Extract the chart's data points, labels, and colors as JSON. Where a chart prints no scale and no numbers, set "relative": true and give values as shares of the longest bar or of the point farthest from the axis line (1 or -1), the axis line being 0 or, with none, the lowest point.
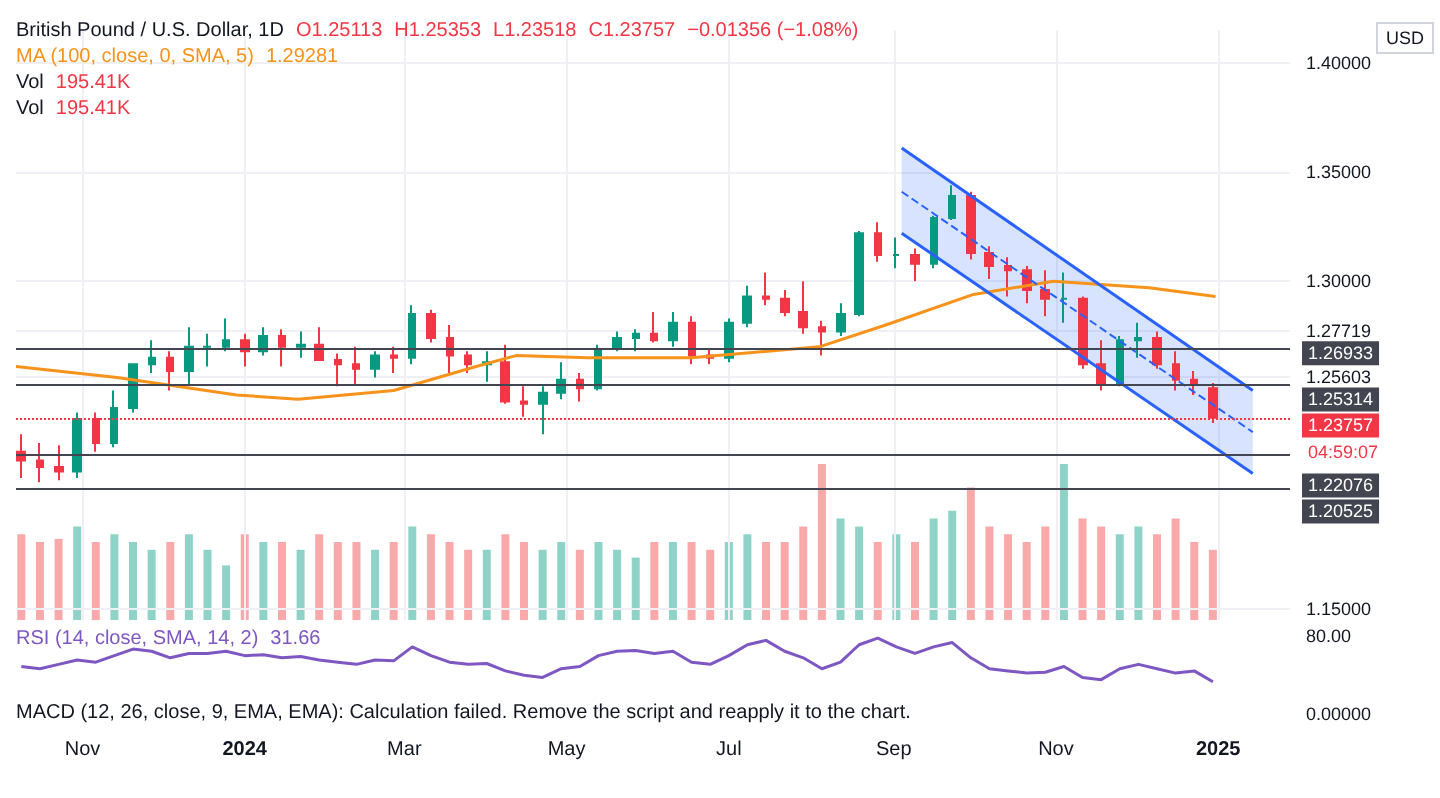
{
  "chart_data": [
    {
      "type": "candlestick",
      "title": "British Pound / U.S. Dollar, 1D",
      "ylabel": "USD",
      "grid": true,
      "annotations": [
        "O1.25113",
        "H1.25353",
        "L1.23518",
        "C1.23757",
        "−0.01356 (−1.08%)",
        "1.29281",
        "04:59:07"
      ],
      "xlim": [
        "2023-10-07",
        "2025-01-28"
      ],
      "xticks": [
        {
          "value": "2023-11-01",
          "label": "Nov"
        },
        {
          "value": "2024-01-01",
          "label": "2024"
        },
        {
          "value": "2024-03-01",
          "label": "Mar"
        },
        {
          "value": "2024-05-01",
          "label": "May"
        },
        {
          "value": "2024-07-01",
          "label": "Jul"
        },
        {
          "value": "2024-09-01",
          "label": "Sep"
        },
        {
          "value": "2024-11-01",
          "label": "Nov"
        },
        {
          "value": "2025-01-01",
          "label": "2025"
        }
      ],
      "ylim": [
        1.145,
        1.415
      ],
      "yticks": [
        {
          "value": 1.15,
          "label": "1.15000"
        },
        {
          "value": 1.25603,
          "label": "1.25603"
        },
        {
          "value": 1.27719,
          "label": "1.27719"
        },
        {
          "value": 1.3,
          "label": "1.30000"
        },
        {
          "value": 1.35,
          "label": "1.35000"
        },
        {
          "value": 1.4,
          "label": "1.40000"
        }
      ],
      "ref_lines": [
        {
          "axis": "y",
          "value": 1.26933,
          "label": "1.26933",
          "color": "#434651",
          "line_style": "solid"
        },
        {
          "axis": "y",
          "value": 1.25314,
          "label": "1.25314",
          "color": "#434651",
          "line_style": "solid"
        },
        {
          "axis": "y",
          "value": 1.23757,
          "label": "1.23757",
          "color": "#f23645",
          "line_style": "dotted"
        },
        {
          "axis": "y",
          "value": 1.22076,
          "label": "1.22076",
          "color": "#434651",
          "line_style": "solid"
        },
        {
          "axis": "y",
          "value": 1.20525,
          "label": "1.20525",
          "color": "#434651",
          "line_style": "solid"
        }
      ],
      "series": [
        {
          "type": "candlestick",
          "x": [
            "2023-10-09",
            "2023-10-16",
            "2023-10-23",
            "2023-10-30",
            "2023-11-06",
            "2023-11-13",
            "2023-11-20",
            "2023-11-27",
            "2023-12-04",
            "2023-12-11",
            "2023-12-18",
            "2023-12-25",
            "2024-01-01",
            "2024-01-08",
            "2024-01-15",
            "2024-01-22",
            "2024-01-29",
            "2024-02-05",
            "2024-02-12",
            "2024-02-19",
            "2024-02-26",
            "2024-03-04",
            "2024-03-11",
            "2024-03-18",
            "2024-03-25",
            "2024-04-01",
            "2024-04-08",
            "2024-04-15",
            "2024-04-22",
            "2024-04-29",
            "2024-05-06",
            "2024-05-13",
            "2024-05-20",
            "2024-05-27",
            "2024-06-03",
            "2024-06-10",
            "2024-06-17",
            "2024-06-24",
            "2024-07-01",
            "2024-07-08",
            "2024-07-15",
            "2024-07-22",
            "2024-07-29",
            "2024-08-05",
            "2024-08-12",
            "2024-08-19",
            "2024-08-26",
            "2024-09-02",
            "2024-09-09",
            "2024-09-16",
            "2024-09-23",
            "2024-09-30",
            "2024-10-07",
            "2024-10-14",
            "2024-10-21",
            "2024-10-28",
            "2024-11-04",
            "2024-11-11",
            "2024-11-18",
            "2024-11-25",
            "2024-12-02",
            "2024-12-09",
            "2024-12-16",
            "2024-12-23",
            "2024-12-30"
          ],
          "ohlc": [
            [
              1.222,
              1.23,
              1.21,
              1.218
            ],
            [
              1.218,
              1.226,
              1.208,
              1.215
            ],
            [
              1.215,
              1.225,
              1.209,
              1.213
            ],
            [
              1.213,
              1.24,
              1.21,
              1.237
            ],
            [
              1.237,
              1.24,
              1.222,
              1.226
            ],
            [
              1.226,
              1.25,
              1.224,
              1.242
            ],
            [
              1.242,
              1.262,
              1.24,
              1.262
            ],
            [
              1.262,
              1.273,
              1.258,
              1.265
            ],
            [
              1.265,
              1.268,
              1.25,
              1.259
            ],
            [
              1.259,
              1.279,
              1.252,
              1.27
            ],
            [
              1.27,
              1.276,
              1.261,
              1.27
            ],
            [
              1.27,
              1.283,
              1.268,
              1.273
            ],
            [
              1.273,
              1.276,
              1.261,
              1.268
            ],
            [
              1.268,
              1.279,
              1.266,
              1.275
            ],
            [
              1.275,
              1.278,
              1.261,
              1.27
            ],
            [
              1.27,
              1.277,
              1.265,
              1.271
            ],
            [
              1.271,
              1.279,
              1.264,
              1.264
            ],
            [
              1.264,
              1.267,
              1.252,
              1.262
            ],
            [
              1.262,
              1.27,
              1.253,
              1.26
            ],
            [
              1.26,
              1.268,
              1.256,
              1.266
            ],
            [
              1.266,
              1.27,
              1.258,
              1.265
            ],
            [
              1.265,
              1.289,
              1.262,
              1.285
            ],
            [
              1.285,
              1.287,
              1.272,
              1.274
            ],
            [
              1.274,
              1.28,
              1.258,
              1.266
            ],
            [
              1.266,
              1.268,
              1.258,
              1.262
            ],
            [
              1.262,
              1.268,
              1.254,
              1.263
            ],
            [
              1.263,
              1.271,
              1.244,
              1.245
            ],
            [
              1.245,
              1.252,
              1.238,
              1.244
            ],
            [
              1.244,
              1.252,
              1.23,
              1.249
            ],
            [
              1.249,
              1.263,
              1.246,
              1.255
            ],
            [
              1.255,
              1.258,
              1.245,
              1.251
            ],
            [
              1.251,
              1.271,
              1.25,
              1.269
            ],
            [
              1.269,
              1.277,
              1.268,
              1.274
            ],
            [
              1.274,
              1.278,
              1.268,
              1.276
            ],
            [
              1.276,
              1.286,
              1.272,
              1.273
            ],
            [
              1.273,
              1.286,
              1.27,
              1.281
            ],
            [
              1.281,
              1.284,
              1.262,
              1.266
            ],
            [
              1.266,
              1.269,
              1.262,
              1.265
            ],
            [
              1.265,
              1.283,
              1.263,
              1.281
            ],
            [
              1.281,
              1.298,
              1.279,
              1.293
            ],
            [
              1.293,
              1.304,
              1.289,
              1.292
            ],
            [
              1.292,
              1.296,
              1.284,
              1.286
            ],
            [
              1.286,
              1.3,
              1.276,
              1.279
            ],
            [
              1.279,
              1.282,
              1.266,
              1.277
            ],
            [
              1.277,
              1.29,
              1.275,
              1.285
            ],
            [
              1.285,
              1.323,
              1.284,
              1.322
            ],
            [
              1.322,
              1.327,
              1.309,
              1.312
            ],
            [
              1.312,
              1.32,
              1.306,
              1.312
            ],
            [
              1.312,
              1.315,
              1.3,
              1.308
            ],
            [
              1.308,
              1.33,
              1.306,
              1.329
            ],
            [
              1.329,
              1.344,
              1.328,
              1.339
            ],
            [
              1.339,
              1.341,
              1.31,
              1.313
            ],
            [
              1.313,
              1.316,
              1.301,
              1.307
            ],
            [
              1.307,
              1.311,
              1.293,
              1.305
            ],
            [
              1.305,
              1.307,
              1.29,
              1.296
            ],
            [
              1.296,
              1.305,
              1.284,
              1.292
            ],
            [
              1.292,
              1.304,
              1.281,
              1.292
            ],
            [
              1.292,
              1.293,
              1.26,
              1.262
            ],
            [
              1.262,
              1.273,
              1.25,
              1.253
            ],
            [
              1.253,
              1.275,
              1.252,
              1.273
            ],
            [
              1.273,
              1.281,
              1.265,
              1.274
            ],
            [
              1.274,
              1.277,
              1.26,
              1.262
            ],
            [
              1.262,
              1.268,
              1.25,
              1.255
            ],
            [
              1.255,
              1.259,
              1.248,
              1.253
            ],
            [
              1.2511,
              1.2535,
              1.2352,
              1.2376
            ]
          ],
          "colors": [
            "#f23645",
            "#f23645",
            "#f23645",
            "#089981",
            "#f23645",
            "#089981",
            "#089981",
            "#089981",
            "#f23645",
            "#089981",
            "#089981",
            "#089981",
            "#f23645",
            "#089981",
            "#f23645",
            "#089981",
            "#f23645",
            "#f23645",
            "#f23645",
            "#089981",
            "#f23645",
            "#089981",
            "#f23645",
            "#f23645",
            "#f23645",
            "#089981",
            "#f23645",
            "#f23645",
            "#089981",
            "#089981",
            "#f23645",
            "#089981",
            "#089981",
            "#089981",
            "#f23645",
            "#089981",
            "#f23645",
            "#f23645",
            "#089981",
            "#089981",
            "#f23645",
            "#f23645",
            "#f23645",
            "#f23645",
            "#089981",
            "#089981",
            "#f23645",
            "#089981",
            "#f23645",
            "#089981",
            "#089981",
            "#f23645",
            "#f23645",
            "#f23645",
            "#f23645",
            "#f23645",
            "#089981",
            "#f23645",
            "#f23645",
            "#089981",
            "#089981",
            "#f23645",
            "#f23645",
            "#f23645",
            "#f23645"
          ]
        },
        {
          "type": "line",
          "name": "MA (100, close, 0, SMA, 5)",
          "color": "#f7931a",
          "x": [
            "2023-10-07",
            "2023-11-14",
            "2023-12-29",
            "2024-01-21",
            "2024-02-26",
            "2024-03-28",
            "2024-04-12",
            "2024-05-09",
            "2024-06-04",
            "2024-06-17",
            "2024-08-04",
            "2024-08-29",
            "2024-10-01",
            "2024-10-31",
            "2024-12-06",
            "2024-12-31"
          ],
          "values": [
            1.261,
            1.256,
            1.248,
            1.246,
            1.25,
            1.261,
            1.266,
            1.265,
            1.265,
            1.265,
            1.27,
            1.28,
            1.294,
            1.3,
            1.297,
            1.293
          ]
        },
        {
          "type": "line",
          "color": "#2962ff",
          "line_style": "dashed",
          "x": [
            "2024-09-04",
            "2025-01-14"
          ],
          "values": [
            1.341,
            1.231
          ],
          "lower": [
            1.322,
            1.212
          ],
          "upper": [
            1.361,
            1.25
          ]
        },
        {
          "type": "line",
          "color": "#2962ff",
          "line_style": "solid",
          "x": [
            "2024-09-04",
            "2025-01-14"
          ],
          "values": [
            1.361,
            1.25
          ]
        },
        {
          "type": "line",
          "color": "#2962ff",
          "line_style": "solid",
          "x": [
            "2024-09-04",
            "2025-01-14"
          ],
          "values": [
            1.322,
            1.212
          ]
        }
      ]
    },
    {
      "type": "bar",
      "relative": true,
      "tick_labels": false,
      "categories": [
        null,
        null,
        null,
        null,
        null,
        null,
        null,
        null,
        null,
        null,
        null,
        null,
        null,
        null,
        null,
        null,
        null,
        null,
        null,
        null,
        null,
        null,
        null,
        null,
        null,
        null,
        null,
        null,
        null,
        null,
        null,
        null,
        null,
        null,
        null,
        null,
        null,
        null,
        null,
        null,
        null,
        null,
        null,
        null,
        null,
        null,
        null,
        null,
        null,
        null,
        null,
        null,
        null,
        null,
        null,
        null,
        null,
        null,
        null,
        null,
        null,
        null,
        null,
        null,
        null
      ],
      "annotations": [
        "195.41K",
        "195.41K"
      ],
      "series": [
        {
          "name": "Vol",
          "values": [
            0.55,
            0.5,
            0.52,
            0.6,
            0.5,
            0.55,
            0.5,
            0.45,
            0.5,
            0.55,
            0.45,
            0.35,
            0.55,
            0.5,
            0.5,
            0.45,
            0.55,
            0.5,
            0.5,
            0.45,
            0.5,
            0.6,
            0.55,
            0.5,
            0.45,
            0.45,
            0.55,
            0.5,
            0.45,
            0.5,
            0.45,
            0.5,
            0.45,
            0.4,
            0.5,
            0.5,
            0.5,
            0.45,
            0.5,
            0.55,
            0.5,
            0.5,
            0.6,
            1.0,
            0.65,
            0.6,
            0.5,
            0.55,
            0.5,
            0.65,
            0.7,
            0.85,
            0.6,
            0.55,
            0.5,
            0.6,
            1.0,
            0.65,
            0.6,
            0.55,
            0.6,
            0.55,
            0.65,
            0.5,
            0.45
          ],
          "colors": [
            "#f9a9a9",
            "#f9a9a9",
            "#f9a9a9",
            "#8fd3c8",
            "#f9a9a9",
            "#8fd3c8",
            "#8fd3c8",
            "#8fd3c8",
            "#f9a9a9",
            "#8fd3c8",
            "#8fd3c8",
            "#8fd3c8",
            "#f9a9a9",
            "#8fd3c8",
            "#f9a9a9",
            "#8fd3c8",
            "#f9a9a9",
            "#f9a9a9",
            "#f9a9a9",
            "#8fd3c8",
            "#f9a9a9",
            "#8fd3c8",
            "#f9a9a9",
            "#f9a9a9",
            "#f9a9a9",
            "#8fd3c8",
            "#f9a9a9",
            "#f9a9a9",
            "#8fd3c8",
            "#8fd3c8",
            "#f9a9a9",
            "#8fd3c8",
            "#8fd3c8",
            "#8fd3c8",
            "#f9a9a9",
            "#8fd3c8",
            "#f9a9a9",
            "#f9a9a9",
            "#8fd3c8",
            "#8fd3c8",
            "#f9a9a9",
            "#f9a9a9",
            "#f9a9a9",
            "#f9a9a9",
            "#8fd3c8",
            "#8fd3c8",
            "#f9a9a9",
            "#8fd3c8",
            "#f9a9a9",
            "#8fd3c8",
            "#8fd3c8",
            "#f9a9a9",
            "#f9a9a9",
            "#f9a9a9",
            "#f9a9a9",
            "#f9a9a9",
            "#8fd3c8",
            "#f9a9a9",
            "#f9a9a9",
            "#8fd3c8",
            "#8fd3c8",
            "#f9a9a9",
            "#f9a9a9",
            "#f9a9a9",
            "#f9a9a9"
          ]
        }
      ]
    },
    {
      "type": "line",
      "relative": true,
      "tick_labels": false,
      "categories": [
        null,
        null,
        null,
        null,
        null,
        null,
        null,
        null,
        null,
        null,
        null,
        null,
        null,
        null,
        null,
        null,
        null,
        null,
        null,
        null,
        null,
        null,
        null,
        null,
        null,
        null,
        null,
        null,
        null,
        null,
        null,
        null,
        null,
        null,
        null,
        null,
        null,
        null,
        null,
        null,
        null,
        null,
        null,
        null,
        null,
        null,
        null,
        null,
        null,
        null,
        null,
        null,
        null,
        null,
        null,
        null,
        null,
        null,
        null,
        null,
        null,
        null,
        null,
        null,
        null
      ],
      "annotations": [
        "31.66",
        "80.00"
      ],
      "series": [
        {
          "name": "RSI (14, close, SMA, 14, 2)",
          "color": "#7e57c2",
          "values": [
            0.35,
            0.3,
            0.4,
            0.5,
            0.45,
            0.6,
            0.75,
            0.7,
            0.55,
            0.65,
            0.65,
            0.7,
            0.6,
            0.62,
            0.55,
            0.58,
            0.5,
            0.45,
            0.4,
            0.5,
            0.48,
            0.8,
            0.6,
            0.45,
            0.4,
            0.42,
            0.25,
            0.15,
            0.1,
            0.3,
            0.35,
            0.6,
            0.7,
            0.72,
            0.65,
            0.7,
            0.45,
            0.4,
            0.6,
            0.85,
            0.95,
            0.7,
            0.55,
            0.3,
            0.45,
            0.85,
            1.0,
            0.8,
            0.65,
            0.8,
            0.9,
            0.55,
            0.3,
            0.25,
            0.2,
            0.22,
            0.35,
            0.1,
            0.05,
            0.3,
            0.4,
            0.3,
            0.2,
            0.25,
            0.0
          ]
        }
      ]
    },
    {
      "type": "other",
      "annotations": [
        "MACD (12, 26, close, 9, EMA, EMA): Calculation failed. Remove the script and reapply it to the chart.",
        "0.00000"
      ]
    }
  ]
}
